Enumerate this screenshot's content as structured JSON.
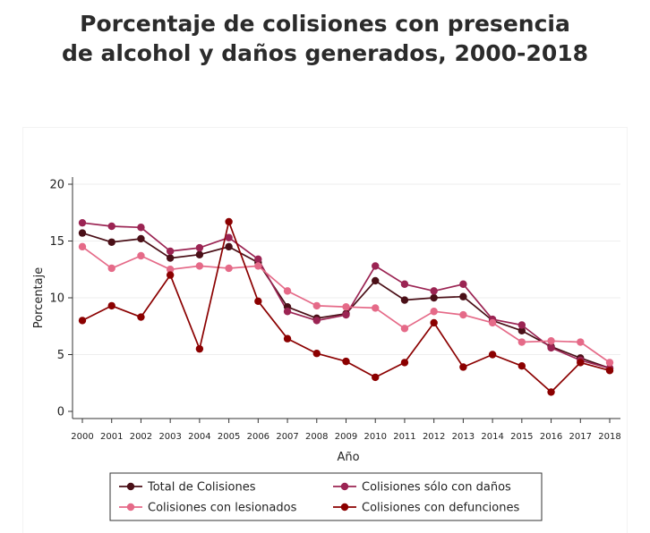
{
  "title": {
    "line1": "Porcentaje de colisiones con presencia",
    "line2": "de alcohol y daños generados, 2000-2018"
  },
  "chart_data": {
    "type": "line",
    "xlabel": "Año",
    "ylabel": "Porcentaje",
    "ylim": [
      0,
      20
    ],
    "yticks": [
      0,
      5,
      10,
      15,
      20
    ],
    "x": [
      2000,
      2001,
      2002,
      2003,
      2004,
      2005,
      2006,
      2007,
      2008,
      2009,
      2010,
      2011,
      2012,
      2013,
      2014,
      2015,
      2016,
      2017,
      2018
    ],
    "grid": "horizontal",
    "legend_position": "bottom",
    "series": [
      {
        "name": "Total de Colisiones",
        "color": "#4a0f17",
        "values": [
          15.7,
          14.9,
          15.2,
          13.5,
          13.8,
          14.5,
          13.1,
          9.2,
          8.2,
          8.6,
          11.5,
          9.8,
          10.0,
          10.1,
          8.0,
          7.1,
          5.7,
          4.7,
          3.8
        ]
      },
      {
        "name": "Colisiones sólo con daños",
        "color": "#9b2453",
        "values": [
          16.6,
          16.3,
          16.2,
          14.1,
          14.4,
          15.3,
          13.4,
          8.8,
          8.0,
          8.5,
          12.8,
          11.2,
          10.6,
          11.2,
          8.1,
          7.6,
          5.6,
          4.5,
          3.8
        ]
      },
      {
        "name": "Colisiones con lesionados",
        "color": "#e56a88",
        "values": [
          14.5,
          12.6,
          13.7,
          12.5,
          12.8,
          12.6,
          12.8,
          10.6,
          9.3,
          9.2,
          9.1,
          7.3,
          8.8,
          8.5,
          7.8,
          6.1,
          6.2,
          6.1,
          4.3
        ]
      },
      {
        "name": "Colisiones con defunciones",
        "color": "#8b0000",
        "values": [
          8.0,
          9.3,
          8.3,
          12.0,
          5.5,
          16.7,
          9.7,
          6.4,
          5.1,
          4.4,
          3.0,
          4.3,
          7.8,
          3.9,
          5.0,
          4.0,
          1.7,
          4.3,
          3.6
        ]
      }
    ],
    "legend_order": [
      0,
      1,
      2,
      3
    ]
  }
}
